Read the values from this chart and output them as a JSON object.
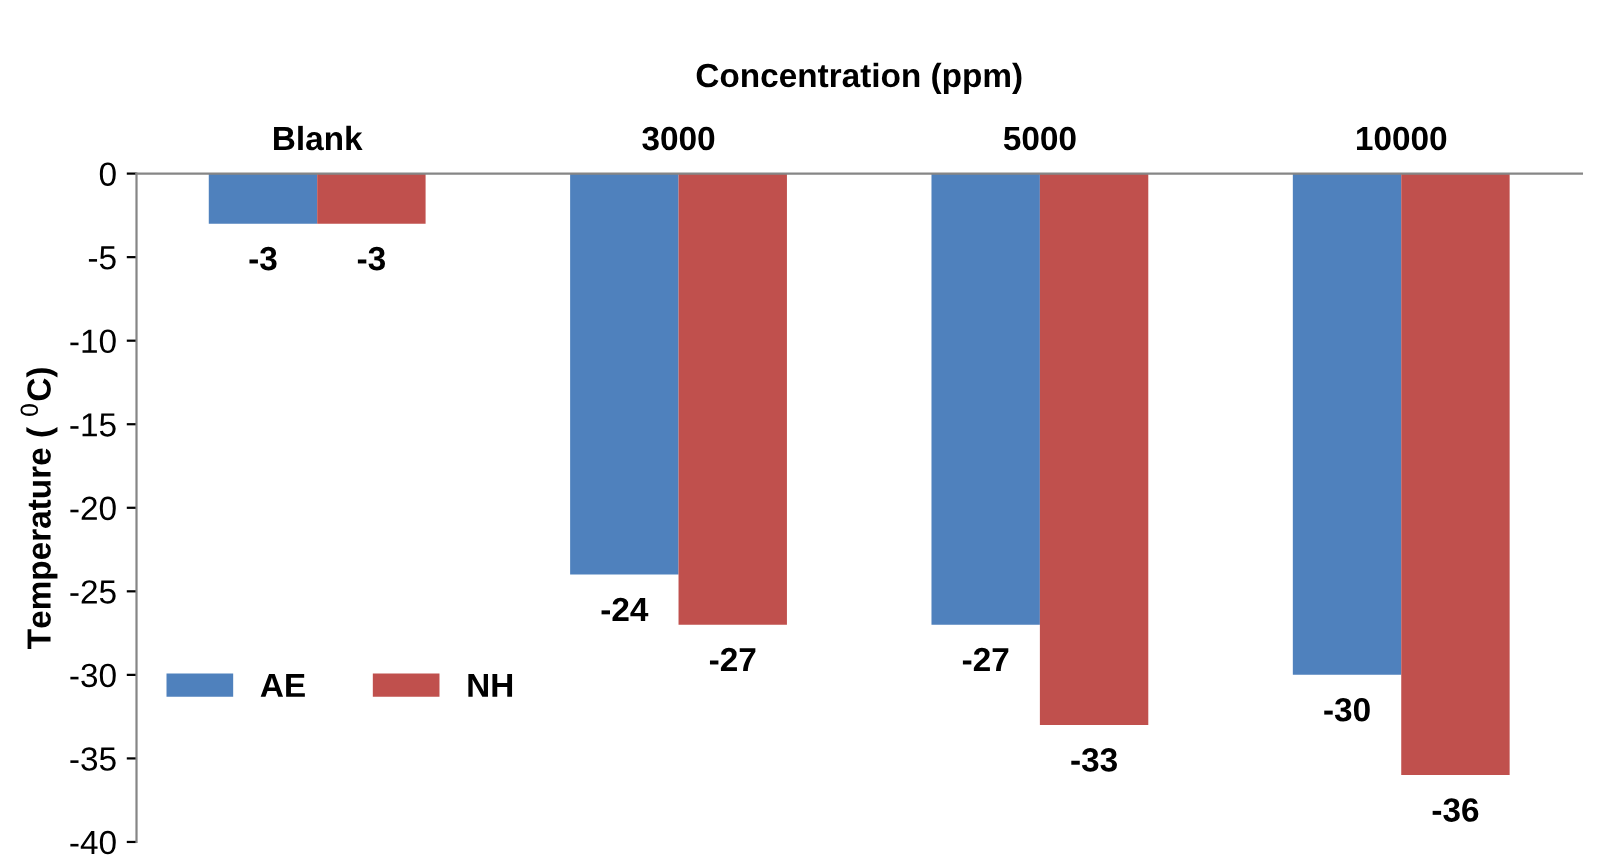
{
  "chart_data": {
    "type": "bar",
    "xlabel": "Concentration (ppm)",
    "ylabel": "Temperature ( $^{0}$C)",
    "categories": [
      "Blank",
      "3000",
      "5000",
      "10000"
    ],
    "series": [
      {
        "name": "AE",
        "color": "#4f81bd",
        "values": [
          -3,
          -24,
          -27,
          -30
        ]
      },
      {
        "name": "NH",
        "color": "#c0504d",
        "values": [
          -3,
          -27,
          -33,
          -36
        ]
      }
    ],
    "ylim": [
      -40,
      0
    ],
    "yticks": [
      0,
      -5,
      -10,
      -15,
      -20,
      -25,
      -30,
      -35,
      -40
    ],
    "grid": false,
    "legend": "left",
    "data_labels": true
  }
}
